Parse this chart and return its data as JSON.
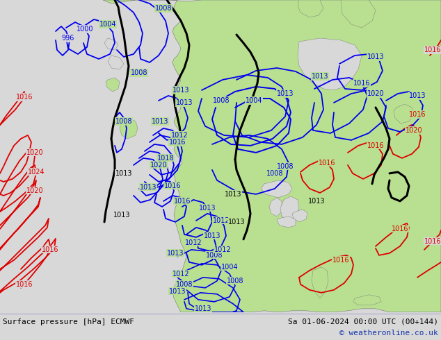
{
  "title_left": "Surface pressure [hPa] ECMWF",
  "title_right": "Sa 01-06-2024 00:00 UTC (00+144)",
  "copyright": "© weatheronline.co.uk",
  "ocean_color": "#d8d8d8",
  "land_color": "#b8e090",
  "border_color": "#888888",
  "bottom_bg": "#dce8f0",
  "fig_width": 6.34,
  "fig_height": 4.9,
  "dpi": 100,
  "blue": "#0000ee",
  "red": "#dd0000",
  "black": "#000000",
  "label_bg": "#d8d8d8"
}
